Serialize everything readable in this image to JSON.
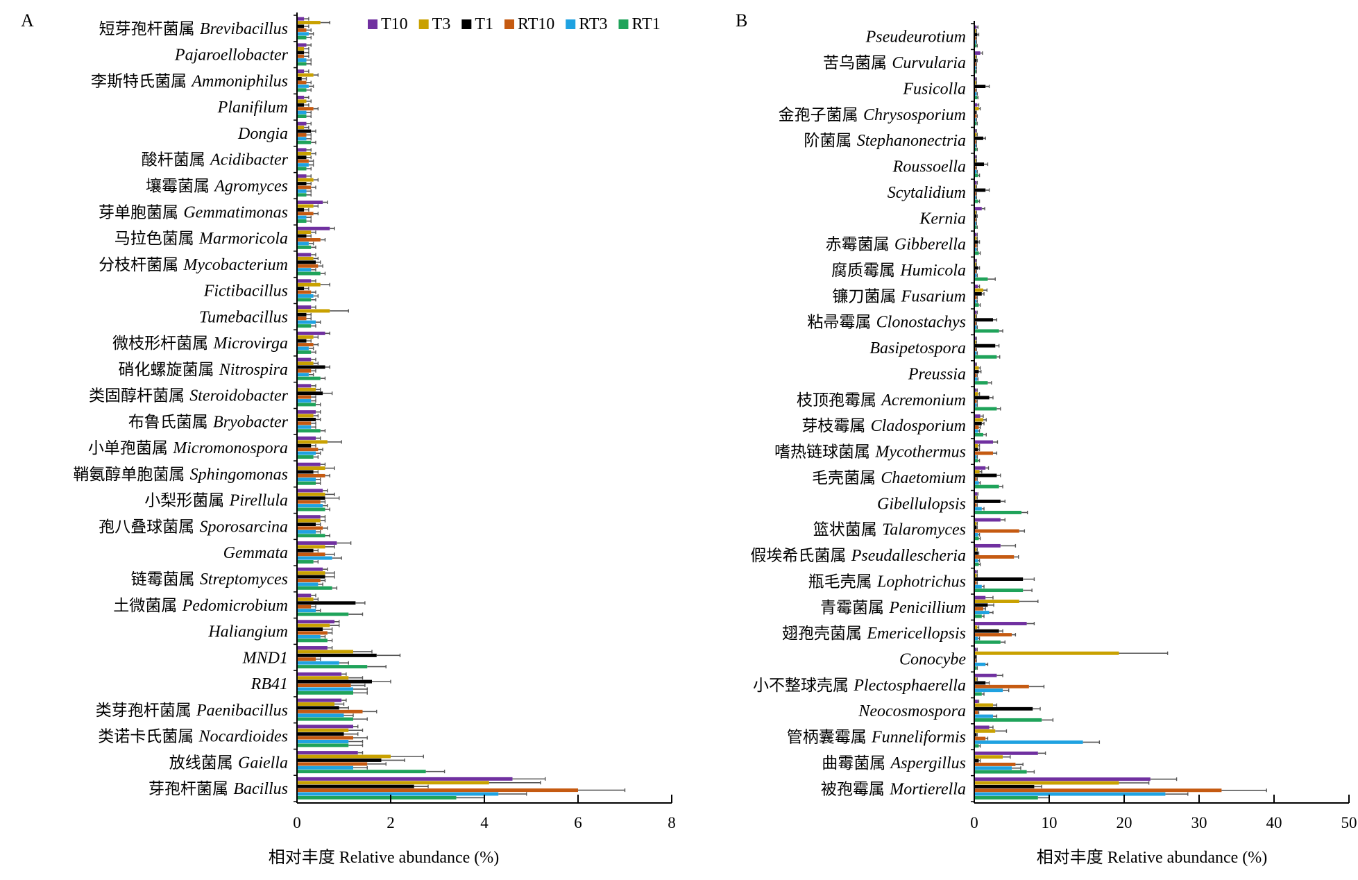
{
  "legend": [
    {
      "name": "T10",
      "color": "#7030A0"
    },
    {
      "name": "T3",
      "color": "#C9A100"
    },
    {
      "name": "T1",
      "color": "#000000"
    },
    {
      "name": "RT10",
      "color": "#C55A11"
    },
    {
      "name": "RT3",
      "color": "#1FA2E1"
    },
    {
      "name": "RT1",
      "color": "#1FA35A"
    }
  ],
  "chart_data": [
    {
      "panel": "A",
      "type": "bar",
      "orientation": "horizontal",
      "xlabel": "相对丰度 Relative abundance (%)",
      "xlim": [
        0,
        8
      ],
      "xticks": [
        "0",
        "2",
        "4",
        "6",
        "8"
      ],
      "categories": [
        {
          "zh": "短芽孢杆菌属",
          "la": "Brevibacillus"
        },
        {
          "zh": "",
          "la": "Pajaroellobacter"
        },
        {
          "zh": "李斯特氏菌属",
          "la": "Ammoniphilus"
        },
        {
          "zh": "",
          "la": "Planifilum"
        },
        {
          "zh": "",
          "la": "Dongia"
        },
        {
          "zh": "酸杆菌属",
          "la": "Acidibacter"
        },
        {
          "zh": "壤霉菌属",
          "la": "Agromyces"
        },
        {
          "zh": "芽单胞菌属",
          "la": "Gemmatimonas"
        },
        {
          "zh": "马拉色菌属",
          "la": "Marmoricola"
        },
        {
          "zh": "分枝杆菌属",
          "la": "Mycobacterium"
        },
        {
          "zh": "",
          "la": "Fictibacillus"
        },
        {
          "zh": "",
          "la": "Tumebacillus"
        },
        {
          "zh": "微枝形杆菌属",
          "la": "Microvirga"
        },
        {
          "zh": "硝化螺旋菌属",
          "la": "Nitrospira"
        },
        {
          "zh": "类固醇杆菌属",
          "la": "Steroidobacter"
        },
        {
          "zh": "布鲁氏菌属",
          "la": "Bryobacter"
        },
        {
          "zh": "小单孢菌属",
          "la": "Micromonospora"
        },
        {
          "zh": "鞘氨醇单胞菌属",
          "la": "Sphingomonas"
        },
        {
          "zh": "小梨形菌属",
          "la": "Pirellula"
        },
        {
          "zh": "孢八叠球菌属",
          "la": "Sporosarcina"
        },
        {
          "zh": "",
          "la": "Gemmata"
        },
        {
          "zh": "链霉菌属",
          "la": "Streptomyces"
        },
        {
          "zh": "土微菌属",
          "la": "Pedomicrobium"
        },
        {
          "zh": "",
          "la": "Haliangium"
        },
        {
          "zh": "",
          "la": "MND1"
        },
        {
          "zh": "",
          "la": "RB41"
        },
        {
          "zh": "类芽孢杆菌属",
          "la": "Paenibacillus"
        },
        {
          "zh": "类诺卡氏菌属",
          "la": "Nocardioides"
        },
        {
          "zh": "放线菌属",
          "la": "Gaiella"
        },
        {
          "zh": "芽孢杆菌属",
          "la": "Bacillus"
        }
      ],
      "series": [
        {
          "name": "T10",
          "values": [
            0.15,
            0.2,
            0.15,
            0.15,
            0.2,
            0.2,
            0.2,
            0.55,
            0.7,
            0.3,
            0.3,
            0.3,
            0.6,
            0.3,
            0.3,
            0.4,
            0.4,
            0.5,
            0.55,
            0.5,
            0.85,
            0.55,
            0.3,
            0.8,
            0.65,
            0.95,
            0.95,
            1.2,
            1.3,
            4.6
          ],
          "errors": [
            0.1,
            0.1,
            0.1,
            0.1,
            0.1,
            0.1,
            0.1,
            0.1,
            0.1,
            0.1,
            0.1,
            0.1,
            0.1,
            0.1,
            0.1,
            0.1,
            0.1,
            0.1,
            0.1,
            0.1,
            0.3,
            0.1,
            0.1,
            0.1,
            0.1,
            0.1,
            0.1,
            0.1,
            0.1,
            0.7
          ]
        },
        {
          "name": "T3",
          "values": [
            0.5,
            0.15,
            0.35,
            0.2,
            0.15,
            0.3,
            0.35,
            0.35,
            0.3,
            0.35,
            0.5,
            0.7,
            0.35,
            0.35,
            0.4,
            0.35,
            0.65,
            0.6,
            0.6,
            0.5,
            0.6,
            0.6,
            0.35,
            0.7,
            1.2,
            1.1,
            0.8,
            1.1,
            2.0,
            4.1
          ],
          "errors": [
            0.2,
            0.1,
            0.1,
            0.1,
            0.1,
            0.1,
            0.1,
            0.1,
            0.1,
            0.1,
            0.2,
            0.4,
            0.1,
            0.1,
            0.1,
            0.1,
            0.3,
            0.2,
            0.2,
            0.1,
            0.2,
            0.2,
            0.1,
            0.2,
            0.4,
            0.3,
            0.2,
            0.3,
            0.7,
            1.1
          ]
        },
        {
          "name": "T1",
          "values": [
            0.15,
            0.15,
            0.1,
            0.15,
            0.3,
            0.2,
            0.2,
            0.15,
            0.2,
            0.4,
            0.15,
            0.2,
            0.2,
            0.6,
            0.55,
            0.4,
            0.3,
            0.35,
            0.6,
            0.4,
            0.35,
            0.6,
            1.25,
            0.55,
            1.7,
            1.6,
            0.9,
            1.0,
            1.8,
            2.5
          ],
          "errors": [
            0.1,
            0.1,
            0.1,
            0.1,
            0.1,
            0.1,
            0.1,
            0.1,
            0.1,
            0.1,
            0.1,
            0.1,
            0.1,
            0.1,
            0.2,
            0.1,
            0.1,
            0.1,
            0.3,
            0.1,
            0.1,
            0.2,
            0.2,
            0.2,
            0.5,
            0.4,
            0.2,
            0.3,
            0.5,
            0.3
          ]
        },
        {
          "name": "RT10",
          "values": [
            0.2,
            0.15,
            0.2,
            0.35,
            0.2,
            0.25,
            0.3,
            0.35,
            0.5,
            0.45,
            0.3,
            0.2,
            0.35,
            0.3,
            0.3,
            0.3,
            0.45,
            0.6,
            0.5,
            0.55,
            0.6,
            0.5,
            0.3,
            0.65,
            0.4,
            1.15,
            1.4,
            1.2,
            1.5,
            6.0
          ],
          "errors": [
            0.1,
            0.1,
            0.1,
            0.1,
            0.1,
            0.1,
            0.1,
            0.1,
            0.1,
            0.1,
            0.1,
            0.1,
            0.1,
            0.1,
            0.1,
            0.1,
            0.1,
            0.1,
            0.1,
            0.1,
            0.2,
            0.1,
            0.1,
            0.1,
            0.1,
            0.3,
            0.3,
            0.3,
            0.4,
            1.0
          ]
        },
        {
          "name": "RT3",
          "values": [
            0.25,
            0.2,
            0.25,
            0.2,
            0.2,
            0.25,
            0.2,
            0.2,
            0.25,
            0.3,
            0.35,
            0.4,
            0.25,
            0.25,
            0.3,
            0.3,
            0.4,
            0.4,
            0.55,
            0.4,
            0.75,
            0.45,
            0.4,
            0.5,
            0.9,
            1.2,
            1.0,
            1.1,
            1.2,
            4.3
          ],
          "errors": [
            0.1,
            0.1,
            0.1,
            0.1,
            0.1,
            0.1,
            0.1,
            0.1,
            0.1,
            0.1,
            0.1,
            0.1,
            0.1,
            0.1,
            0.1,
            0.1,
            0.1,
            0.1,
            0.1,
            0.1,
            0.2,
            0.1,
            0.1,
            0.1,
            0.2,
            0.3,
            0.2,
            0.3,
            0.3,
            0.6
          ]
        },
        {
          "name": "RT1",
          "values": [
            0.2,
            0.2,
            0.2,
            0.2,
            0.3,
            0.2,
            0.2,
            0.2,
            0.3,
            0.5,
            0.3,
            0.3,
            0.3,
            0.5,
            0.4,
            0.5,
            0.35,
            0.4,
            0.6,
            0.6,
            0.35,
            0.75,
            1.1,
            0.65,
            1.5,
            1.2,
            1.2,
            1.1,
            2.75,
            3.4
          ],
          "errors": [
            0.1,
            0.1,
            0.1,
            0.1,
            0.1,
            0.1,
            0.1,
            0.1,
            0.1,
            0.1,
            0.1,
            0.1,
            0.1,
            0.1,
            0.1,
            0.1,
            0.1,
            0.1,
            0.1,
            0.1,
            0.1,
            0.1,
            0.3,
            0.1,
            0.4,
            0.3,
            0.3,
            0.3,
            0.4,
            0.6
          ]
        }
      ]
    },
    {
      "panel": "B",
      "type": "bar",
      "orientation": "horizontal",
      "xlabel": "相对丰度 Relative abundance (%)",
      "xlim": [
        0,
        50
      ],
      "xticks": [
        "0",
        "10",
        "20",
        "30",
        "40",
        "50"
      ],
      "categories": [
        {
          "zh": "",
          "la": "Pseudeurotium"
        },
        {
          "zh": "苦乌菌属",
          "la": "Curvularia"
        },
        {
          "zh": "",
          "la": "Fusicolla"
        },
        {
          "zh": "金孢子菌属",
          "la": "Chrysosporium"
        },
        {
          "zh": "阶菌属",
          "la": "Stephanonectria"
        },
        {
          "zh": "",
          "la": "Roussoella"
        },
        {
          "zh": "",
          "la": "Scytalidium"
        },
        {
          "zh": "",
          "la": "Kernia"
        },
        {
          "zh": "赤霉菌属",
          "la": "Gibberella"
        },
        {
          "zh": "腐质霉属",
          "la": "Humicola"
        },
        {
          "zh": "镰刀菌属",
          "la": "Fusarium"
        },
        {
          "zh": "粘帚霉属",
          "la": "Clonostachys"
        },
        {
          "zh": "",
          "la": "Basipetospora"
        },
        {
          "zh": "",
          "la": "Preussia"
        },
        {
          "zh": "枝顶孢霉属",
          "la": "Acremonium"
        },
        {
          "zh": "芽枝霉属",
          "la": "Cladosporium"
        },
        {
          "zh": "嗜热链球菌属",
          "la": "Mycothermus"
        },
        {
          "zh": "毛壳菌属",
          "la": "Chaetomium"
        },
        {
          "zh": "",
          "la": "Gibellulopsis"
        },
        {
          "zh": "篮状菌属",
          "la": "Talaromyces"
        },
        {
          "zh": "假埃希氏菌属",
          "la": "Pseudallescheria"
        },
        {
          "zh": "瓶毛壳属",
          "la": "Lophotrichus"
        },
        {
          "zh": "青霉菌属",
          "la": "Penicillium"
        },
        {
          "zh": "翅孢壳菌属",
          "la": "Emericellopsis"
        },
        {
          "zh": "",
          "la": "Conocybe"
        },
        {
          "zh": "小不整球壳属",
          "la": "Plectosphaerella"
        },
        {
          "zh": "",
          "la": "Neocosmospora"
        },
        {
          "zh": "管柄囊霉属",
          "la": "Funneliformis"
        },
        {
          "zh": "曲霉菌属",
          "la": "Aspergillus"
        },
        {
          "zh": "被孢霉属",
          "la": "Mortierella"
        }
      ],
      "series": [
        {
          "name": "T10",
          "values": [
            0.3,
            0.8,
            0.2,
            0.4,
            0.2,
            0.2,
            0.3,
            1.0,
            0.3,
            0.2,
            0.5,
            0.3,
            0.2,
            0.2,
            0.3,
            0.8,
            2.5,
            1.5,
            0.4,
            3.5,
            3.5,
            0.3,
            1.5,
            7.0,
            0.3,
            3.0,
            0.5,
            2.0,
            8.5,
            23.5
          ],
          "errors": [
            0.2,
            0.3,
            0.1,
            0.2,
            0.1,
            0.1,
            0.1,
            0.4,
            0.1,
            0.1,
            0.2,
            0.1,
            0.1,
            0.1,
            0.1,
            0.4,
            0.6,
            0.4,
            0.1,
            0.6,
            2.0,
            0.1,
            1.0,
            1.0,
            0.1,
            0.8,
            0.1,
            0.5,
            1.0,
            3.5
          ]
        },
        {
          "name": "T3",
          "values": [
            0.2,
            0.2,
            0.2,
            0.6,
            0.3,
            0.2,
            0.2,
            0.2,
            0.3,
            0.2,
            1.2,
            0.2,
            0.2,
            0.6,
            0.5,
            1.2,
            0.5,
            0.7,
            0.3,
            0.3,
            0.3,
            0.3,
            6.0,
            0.4,
            19.3,
            0.3,
            2.5,
            2.8,
            3.8,
            19.3
          ],
          "errors": [
            0.1,
            0.1,
            0.1,
            0.2,
            0.1,
            0.1,
            0.1,
            0.1,
            0.1,
            0.1,
            0.5,
            0.1,
            0.1,
            0.2,
            0.2,
            0.4,
            0.2,
            0.3,
            0.1,
            0.1,
            0.1,
            0.1,
            2.5,
            0.2,
            6.5,
            0.1,
            0.5,
            1.5,
            1.0,
            4.0
          ]
        },
        {
          "name": "T1",
          "values": [
            0.4,
            0.3,
            1.5,
            0.2,
            1.2,
            1.3,
            1.5,
            0.3,
            0.5,
            0.5,
            1.0,
            2.5,
            2.8,
            0.6,
            2.0,
            1.0,
            0.5,
            3.0,
            3.5,
            0.3,
            0.5,
            6.5,
            1.8,
            3.3,
            0.2,
            1.5,
            7.8,
            0.3,
            0.6,
            8.0
          ],
          "errors": [
            0.2,
            0.1,
            0.5,
            0.1,
            0.3,
            0.5,
            0.5,
            0.1,
            0.2,
            0.2,
            0.3,
            0.5,
            0.5,
            0.3,
            0.5,
            0.3,
            0.2,
            0.5,
            0.6,
            0.1,
            0.1,
            1.5,
            0.8,
            0.5,
            0.1,
            0.5,
            1.0,
            0.1,
            0.2,
            1.0
          ]
        },
        {
          "name": "RT10",
          "values": [
            0.2,
            0.2,
            0.2,
            0.3,
            0.2,
            0.2,
            0.2,
            0.2,
            0.3,
            0.2,
            0.3,
            0.2,
            0.2,
            0.3,
            0.3,
            0.6,
            2.5,
            0.3,
            0.3,
            6.0,
            5.3,
            0.3,
            1.2,
            5.0,
            0.2,
            7.3,
            0.5,
            1.5,
            5.5,
            33.0
          ],
          "errors": [
            0.1,
            0.1,
            0.1,
            0.1,
            0.1,
            0.1,
            0.1,
            0.1,
            0.1,
            0.1,
            0.1,
            0.1,
            0.1,
            0.1,
            0.1,
            0.2,
            0.5,
            0.1,
            0.1,
            0.7,
            0.6,
            0.1,
            0.3,
            0.5,
            0.1,
            2.0,
            0.1,
            0.3,
            1.0,
            6.0
          ]
        },
        {
          "name": "RT3",
          "values": [
            0.2,
            0.2,
            0.3,
            0.2,
            0.2,
            0.3,
            0.2,
            0.2,
            0.3,
            0.3,
            0.3,
            0.3,
            0.3,
            0.4,
            0.3,
            0.5,
            0.3,
            0.6,
            1.0,
            0.5,
            0.5,
            1.0,
            2.0,
            0.5,
            1.5,
            3.8,
            2.5,
            14.5,
            5.0,
            25.5
          ],
          "errors": [
            0.1,
            0.1,
            0.1,
            0.1,
            0.1,
            0.1,
            0.1,
            0.1,
            0.1,
            0.1,
            0.1,
            0.1,
            0.1,
            0.1,
            0.1,
            0.2,
            0.1,
            0.2,
            0.3,
            0.2,
            0.2,
            0.3,
            0.5,
            0.2,
            0.3,
            0.8,
            0.5,
            2.2,
            1.2,
            3.0
          ]
        },
        {
          "name": "RT1",
          "values": [
            0.3,
            0.2,
            0.4,
            0.3,
            0.3,
            0.5,
            0.5,
            0.3,
            0.6,
            1.8,
            0.6,
            3.3,
            3.0,
            1.8,
            3.0,
            1.2,
            0.5,
            3.3,
            6.3,
            0.6,
            0.6,
            6.5,
            1.0,
            3.5,
            0.3,
            1.0,
            9.0,
            0.6,
            7.0,
            8.5
          ],
          "errors": [
            0.1,
            0.1,
            0.1,
            0.1,
            0.1,
            0.2,
            0.2,
            0.1,
            0.2,
            1.0,
            0.2,
            0.5,
            0.4,
            0.5,
            0.5,
            0.4,
            0.2,
            0.5,
            0.8,
            0.2,
            0.2,
            1.2,
            0.3,
            0.6,
            0.1,
            0.3,
            1.5,
            0.2,
            1.0,
            1.5
          ]
        }
      ]
    }
  ],
  "panel_labels": [
    "A",
    "B"
  ]
}
